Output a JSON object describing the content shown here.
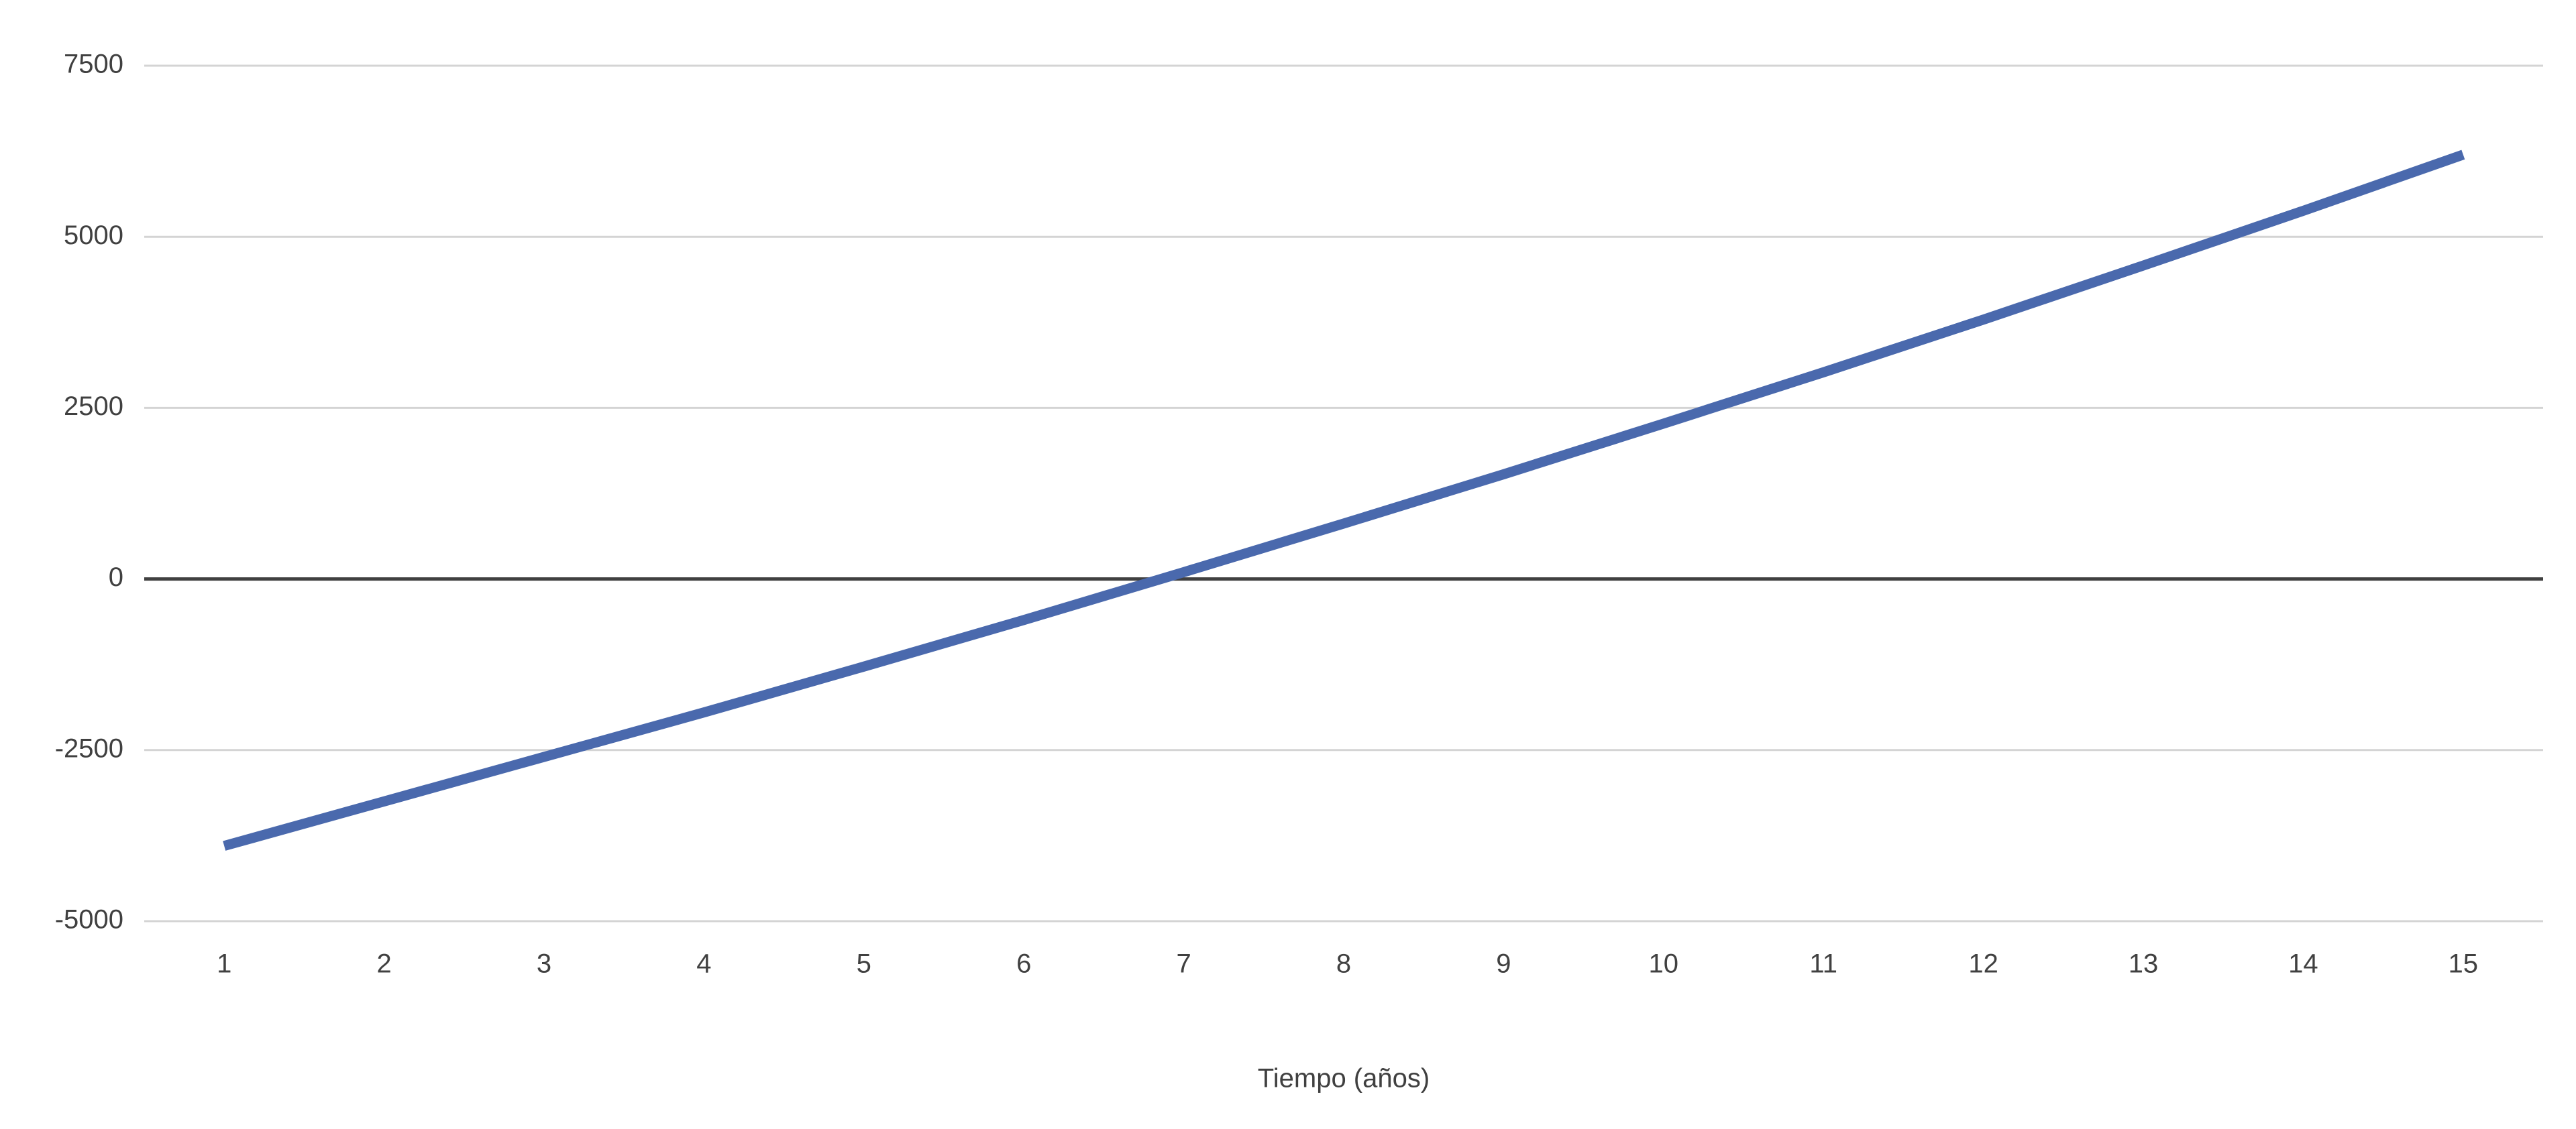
{
  "chart_data": {
    "type": "line",
    "x_label": "Tiempo (años)",
    "categories": [
      "1",
      "2",
      "3",
      "4",
      "5",
      "6",
      "7",
      "8",
      "9",
      "10",
      "11",
      "12",
      "13",
      "14",
      "15"
    ],
    "series": [
      {
        "color": "#4a69ad",
        "values": [
          -3900,
          -3250,
          -2600,
          -1950,
          -1280,
          -600,
          100,
          810,
          1530,
          2270,
          3020,
          3790,
          4580,
          5380,
          6200
        ]
      }
    ],
    "ylim": [
      -5000,
      7500
    ],
    "yticks": [
      -5000,
      -2500,
      0,
      2500,
      5000,
      7500
    ],
    "grid": true
  }
}
